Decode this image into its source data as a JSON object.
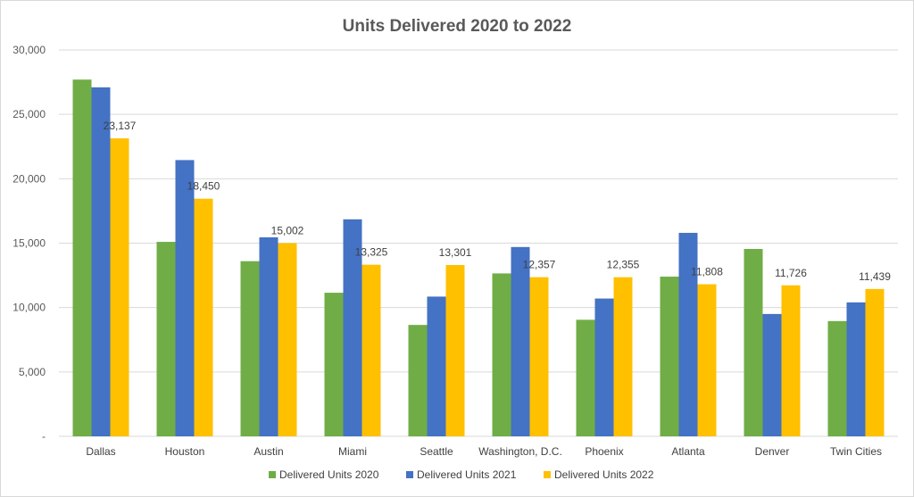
{
  "chart_data": {
    "type": "bar",
    "title": "Units Delivered 2020 to 2022",
    "xlabel": "",
    "ylabel": "",
    "ylim": [
      0,
      30000
    ],
    "yticks": [
      0,
      5000,
      10000,
      15000,
      20000,
      25000,
      30000
    ],
    "ytick_labels": [
      "-",
      "5,000",
      "10,000",
      "15,000",
      "20,000",
      "25,000",
      "30,000"
    ],
    "grid": true,
    "legend_position": "bottom",
    "categories": [
      "Dallas",
      "Houston",
      "Austin",
      "Miami",
      "Seattle",
      "Washington, D.C.",
      "Phoenix",
      "Atlanta",
      "Denver",
      "Twin Cities"
    ],
    "series": [
      {
        "name": "Delivered Units 2020",
        "color": "#70ad47",
        "values": [
          27700,
          15100,
          13600,
          11150,
          8650,
          12650,
          9050,
          12400,
          14550,
          8950
        ]
      },
      {
        "name": "Delivered Units 2021",
        "color": "#4472c4",
        "values": [
          27100,
          21450,
          15450,
          16850,
          10850,
          14700,
          10700,
          15800,
          9500,
          10400
        ]
      },
      {
        "name": "Delivered Units 2022",
        "color": "#ffc000",
        "values": [
          23137,
          18450,
          15002,
          13325,
          13301,
          12357,
          12355,
          11808,
          11726,
          11439
        ],
        "data_labels": [
          "23,137",
          "18,450",
          "15,002",
          "13,325",
          "13,301",
          "12,357",
          "12,355",
          "11,808",
          "11,726",
          "11,439"
        ]
      }
    ]
  }
}
